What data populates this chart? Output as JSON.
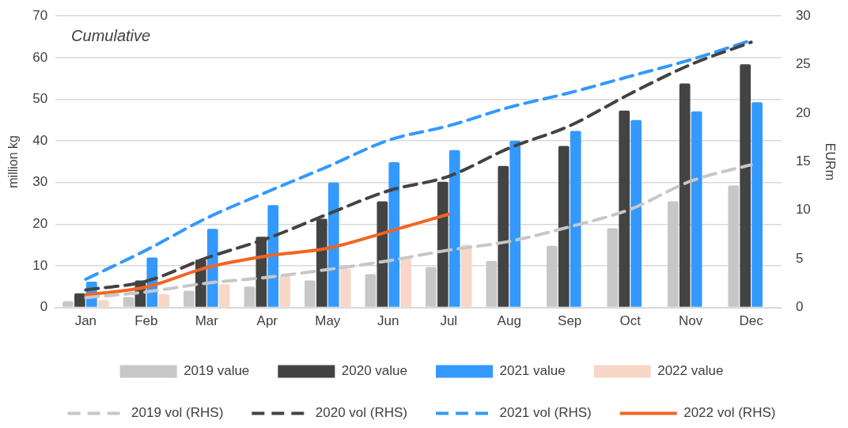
{
  "chart_data": {
    "type": "bar",
    "categories": [
      "Jan",
      "Feb",
      "Mar",
      "Apr",
      "May",
      "Jun",
      "Jul",
      "Aug",
      "Sep",
      "Oct",
      "Nov",
      "Dec"
    ],
    "ylabel": "million kg",
    "y2label": "EURm",
    "annotations": [
      "Cumulative"
    ],
    "ylim": [
      0,
      70
    ],
    "yticks": [
      0,
      10,
      20,
      30,
      40,
      50,
      60,
      70
    ],
    "y2lim": [
      0,
      30
    ],
    "y2ticks": [
      0,
      5,
      10,
      15,
      20,
      25,
      30
    ],
    "grid": "y",
    "legend": "bottom",
    "series": [
      {
        "name": "2019 value",
        "color": "#c8c7c7",
        "values": [
          1.5,
          2.5,
          4,
          5,
          6.5,
          8,
          9.7,
          11.2,
          14.8,
          19,
          25.5,
          29.3
        ]
      },
      {
        "name": "2020 value",
        "color": "#434343",
        "values": [
          3.4,
          6.5,
          11.5,
          17,
          21.3,
          25.5,
          30.2,
          34,
          38.8,
          47.3,
          53.8,
          58.4
        ]
      },
      {
        "name": "2021 value",
        "color": "#3399ff",
        "values": [
          6.2,
          12,
          18.9,
          24.6,
          30,
          34.9,
          37.8,
          40,
          42.4,
          45,
          47.1,
          49.3
        ]
      },
      {
        "name": "2022 value",
        "color": "#f8d7c8",
        "values": [
          1.8,
          3.2,
          5.6,
          7.7,
          9.3,
          11.9,
          15.1,
          null,
          null,
          null,
          null,
          null
        ]
      },
      {
        "name": "2019 vol (RHS)",
        "type": "line",
        "axis": "y2",
        "line_style": "dashed",
        "color": "#c8c7c7",
        "values": [
          1.0,
          1.6,
          2.5,
          3.1,
          3.9,
          4.8,
          5.9,
          6.8,
          8.3,
          10.1,
          13.0,
          14.7
        ]
      },
      {
        "name": "2020 vol (RHS)",
        "type": "line",
        "axis": "y2",
        "line_style": "dashed",
        "color": "#434343",
        "values": [
          1.8,
          2.7,
          5.1,
          7.1,
          9.6,
          12.0,
          13.5,
          16.4,
          18.7,
          22.0,
          25.0,
          27.3
        ]
      },
      {
        "name": "2021 vol (RHS)",
        "type": "line",
        "axis": "y2",
        "line_style": "dashed",
        "color": "#3399ff",
        "values": [
          2.9,
          5.9,
          9.2,
          11.9,
          14.5,
          17.2,
          18.7,
          20.6,
          22.1,
          23.8,
          25.5,
          27.5
        ]
      },
      {
        "name": "2022 vol (RHS)",
        "type": "line",
        "axis": "y2",
        "line_style": "solid",
        "color": "#f26522",
        "values": [
          1.3,
          2.1,
          4.1,
          5.3,
          6.1,
          7.8,
          9.6,
          null,
          null,
          null,
          null,
          null
        ]
      }
    ]
  }
}
